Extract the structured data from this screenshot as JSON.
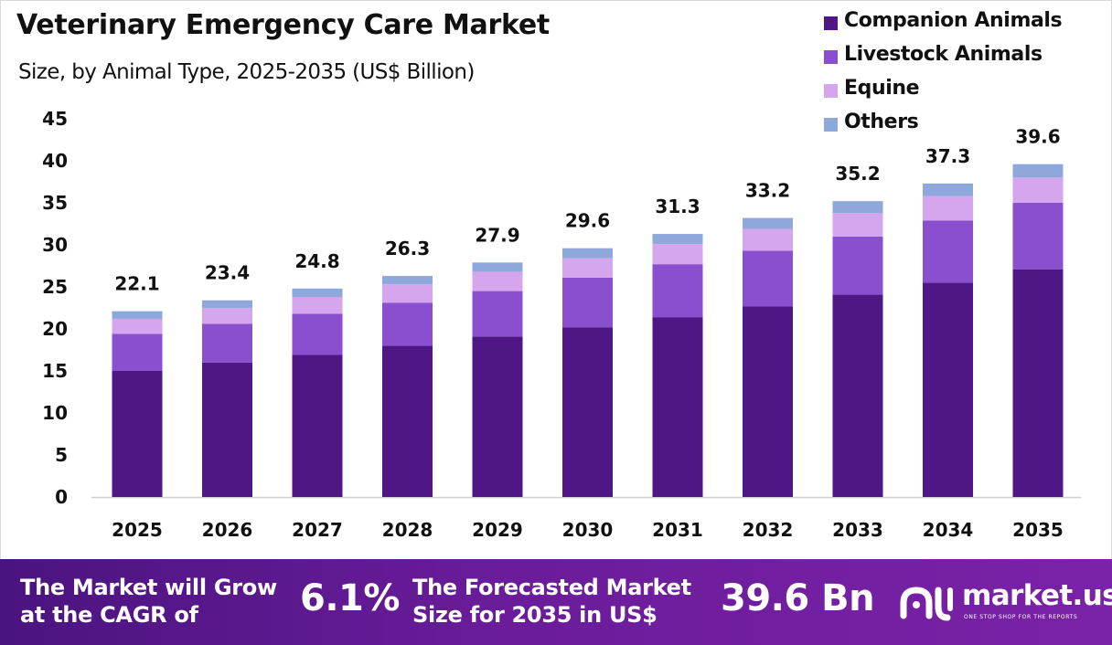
{
  "chart_data": {
    "type": "bar",
    "stacked": true,
    "title": "Veterinary Emergency Care Market",
    "subtitle": "Size, by Animal Type, 2025-2035 (US$ Billion)",
    "categories": [
      "2025",
      "2026",
      "2027",
      "2028",
      "2029",
      "2030",
      "2031",
      "2032",
      "2033",
      "2034",
      "2035"
    ],
    "series": [
      {
        "name": "Companion Animals",
        "color": "#4e1785",
        "values": [
          15.0,
          16.0,
          16.9,
          18.0,
          19.1,
          20.2,
          21.4,
          22.7,
          24.1,
          25.5,
          27.1
        ]
      },
      {
        "name": "Livestock Animals",
        "color": "#8a4fce",
        "values": [
          4.4,
          4.6,
          4.9,
          5.1,
          5.4,
          5.9,
          6.3,
          6.6,
          6.9,
          7.4,
          7.9
        ]
      },
      {
        "name": "Equine",
        "color": "#d5a6ee",
        "values": [
          1.8,
          1.9,
          2.0,
          2.2,
          2.3,
          2.3,
          2.4,
          2.6,
          2.8,
          2.9,
          3.0
        ]
      },
      {
        "name": "Others",
        "color": "#8fa8dc",
        "values": [
          0.9,
          0.9,
          1.0,
          1.0,
          1.1,
          1.2,
          1.2,
          1.3,
          1.4,
          1.5,
          1.6
        ]
      }
    ],
    "totals": [
      "22.1",
      "23.4",
      "24.8",
      "26.3",
      "27.9",
      "29.6",
      "31.3",
      "33.2",
      "35.2",
      "37.3",
      "39.6"
    ],
    "ylim": [
      0,
      45
    ],
    "yticks": [
      "0",
      "5",
      "10",
      "15",
      "20",
      "25",
      "30",
      "35",
      "40",
      "45"
    ],
    "grid": false,
    "legend_position": "top-right"
  },
  "footer": {
    "cagr_label": "The Market will Grow at the CAGR of",
    "cagr_value": "6.1%",
    "forecast_label": "The Forecasted Market Size for 2035 in US$",
    "forecast_value": "39.6 Bn",
    "brand_name": "market.us",
    "brand_tagline": "ONE STOP SHOP FOR THE REPORTS"
  }
}
